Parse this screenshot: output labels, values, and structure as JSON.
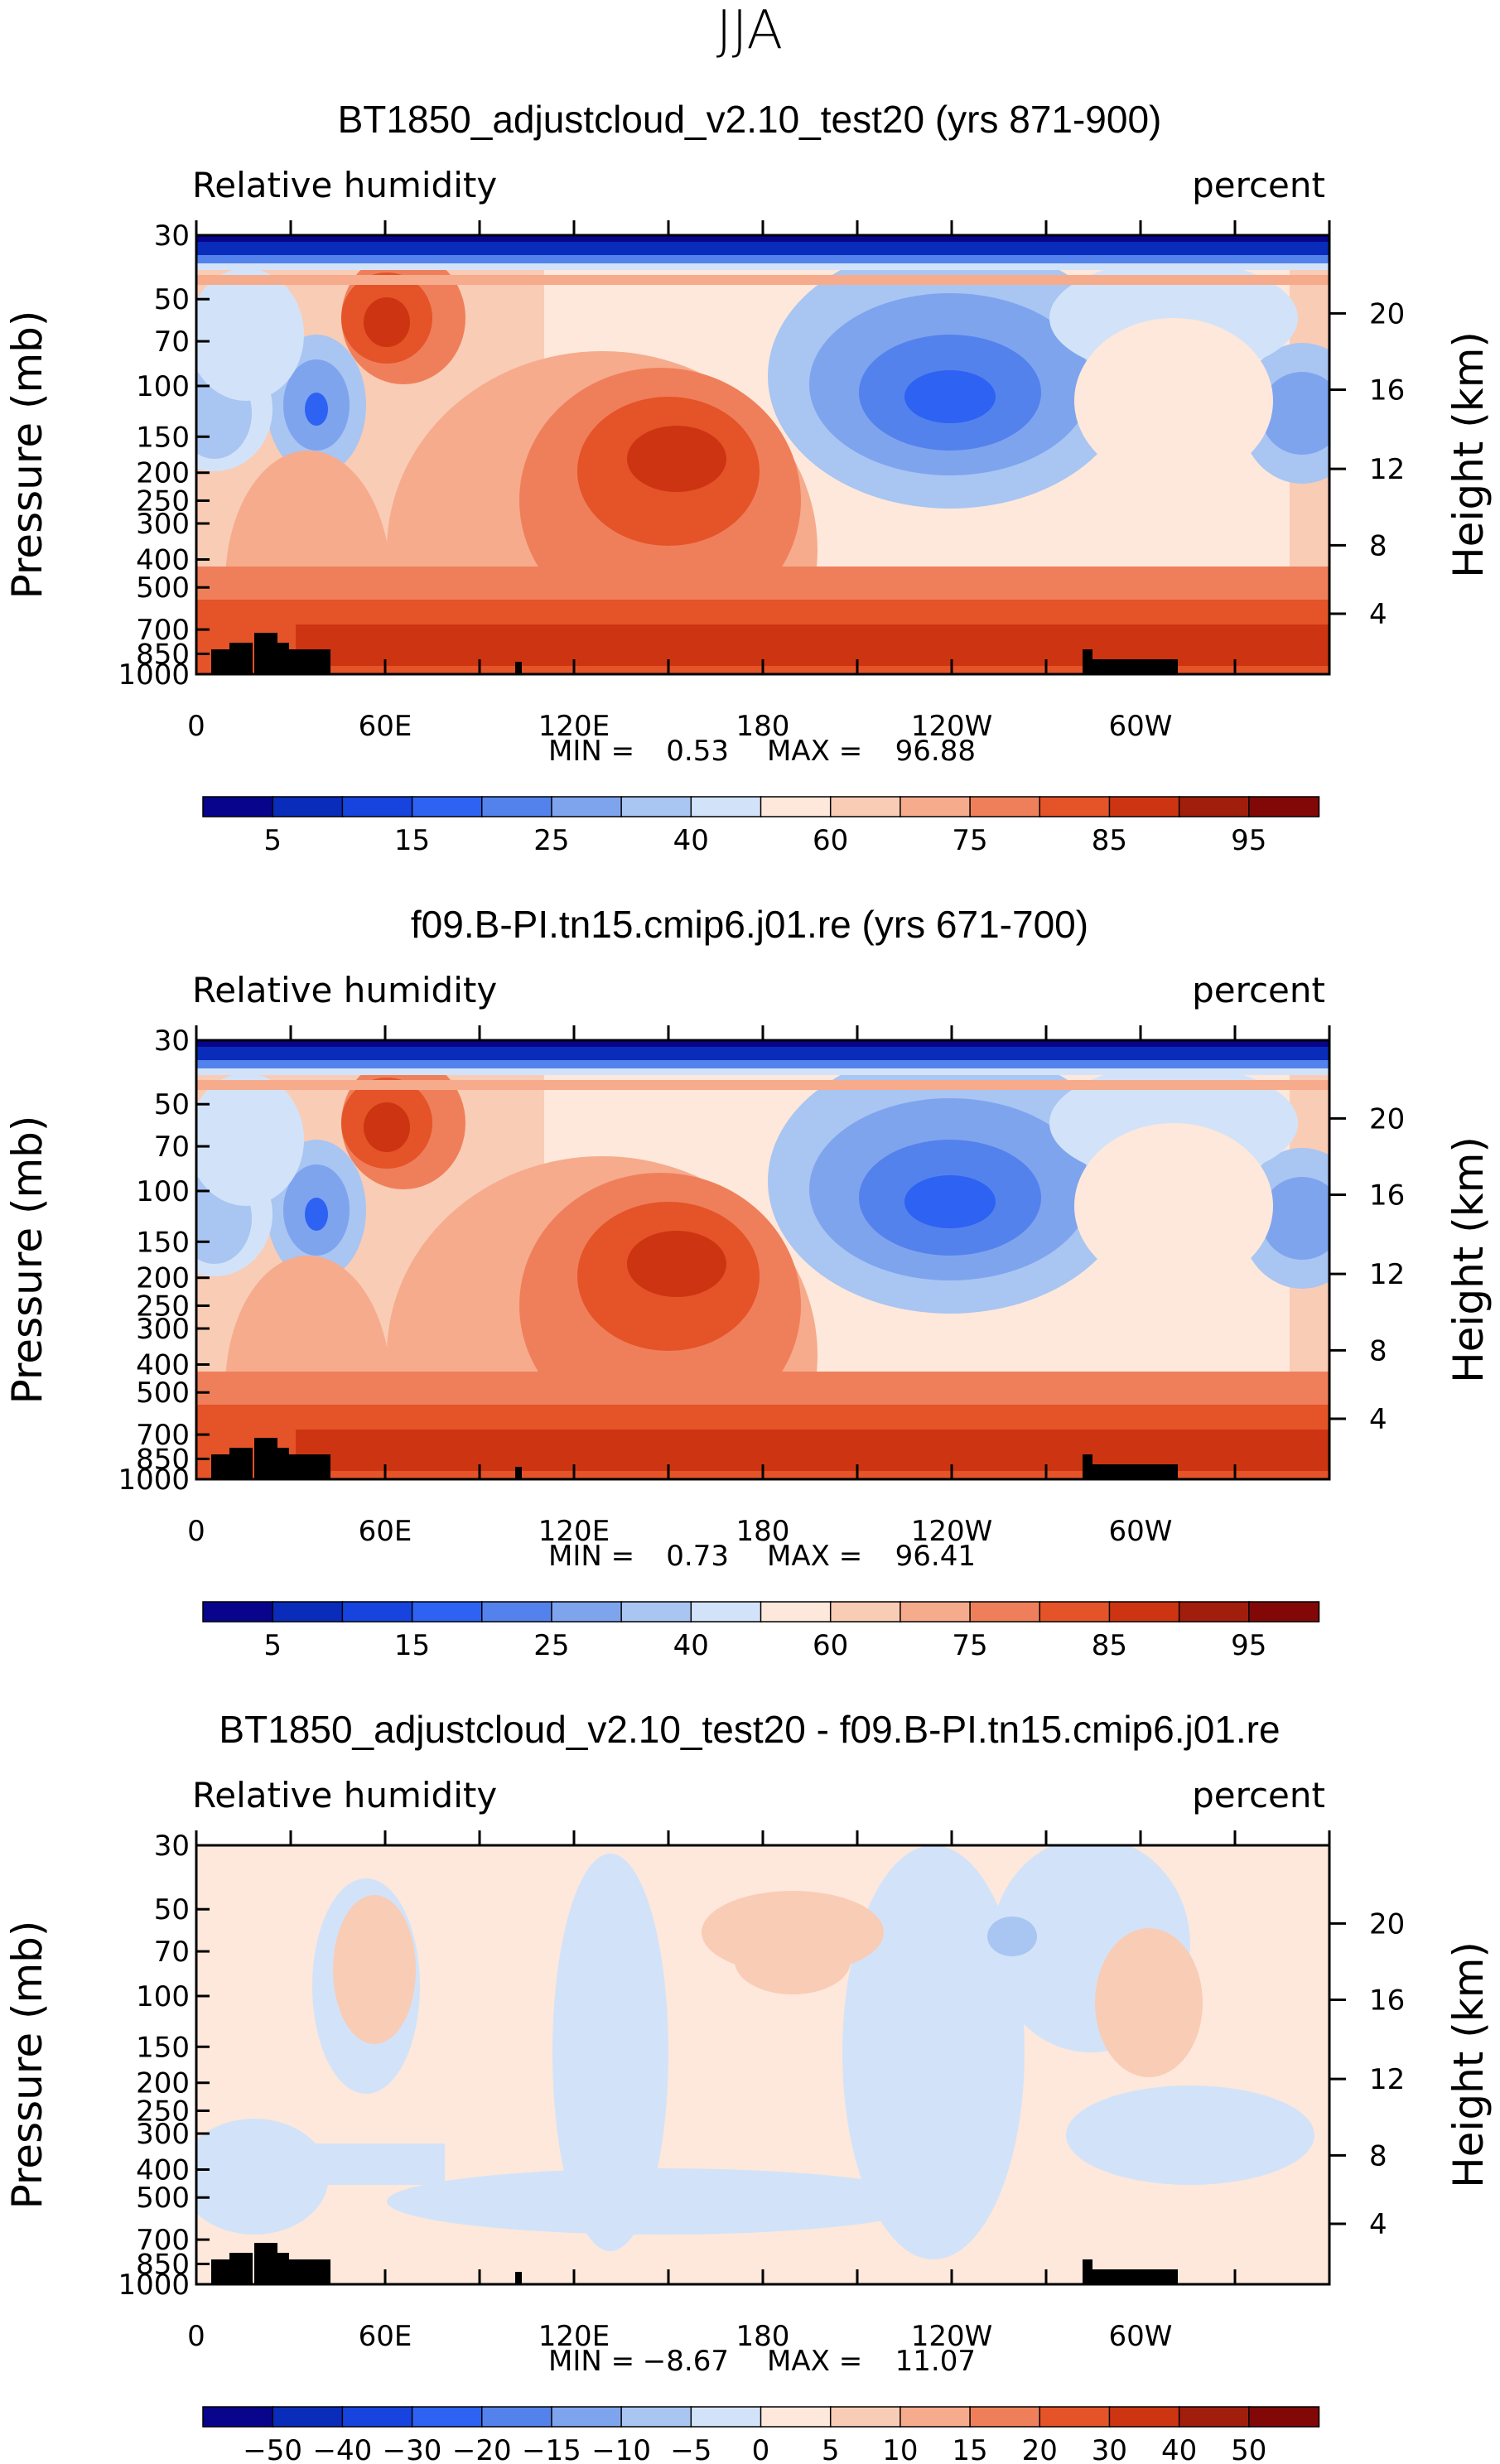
{
  "figure": {
    "season": "JJA"
  },
  "chart_data": [
    {
      "type": "heatmap",
      "title": "BT1850_adjustcloud_v2.10_test20 (yrs 871-900)",
      "variable": "Relative humidity",
      "units": "percent",
      "ylabel": "Pressure (mb)",
      "y2label": "Height (km)",
      "xticks": [
        "0",
        "60E",
        "120E",
        "180",
        "120W",
        "60W"
      ],
      "xlim_deg": [
        0,
        360
      ],
      "yticks": [
        "30",
        "50",
        "70",
        "100",
        "150",
        "200",
        "250",
        "300",
        "400",
        "500",
        "700",
        "850",
        "1000"
      ],
      "ylim_mb": [
        30,
        1000
      ],
      "y2ticks": [
        "20",
        "16",
        "12",
        "8",
        "4"
      ],
      "y2_pressure_mb": [
        56,
        103,
        194,
        357,
        617
      ],
      "min_label": "MIN =",
      "min": "0.53",
      "max_label": "MAX =",
      "max": "96.88",
      "levels": [
        "5",
        "15",
        "25",
        "40",
        "60",
        "75",
        "85",
        "95"
      ],
      "colorbar": [
        "#08058c",
        "#0a2cba",
        "#1744de",
        "#2d62f2",
        "#5482ec",
        "#7fa4ee",
        "#a9c5f2",
        "#d2e3f9",
        "#fde8db",
        "#f9ccb6",
        "#f6ab8c",
        "#ef7f5a",
        "#e55328",
        "#cd3512",
        "#a11d0c",
        "#820808"
      ],
      "mode": "total"
    },
    {
      "type": "heatmap",
      "title": "f09.B-PI.tn15.cmip6.j01.re (yrs 671-700)",
      "variable": "Relative humidity",
      "units": "percent",
      "ylabel": "Pressure (mb)",
      "y2label": "Height (km)",
      "xticks": [
        "0",
        "60E",
        "120E",
        "180",
        "120W",
        "60W"
      ],
      "xlim_deg": [
        0,
        360
      ],
      "yticks": [
        "30",
        "50",
        "70",
        "100",
        "150",
        "200",
        "250",
        "300",
        "400",
        "500",
        "700",
        "850",
        "1000"
      ],
      "ylim_mb": [
        30,
        1000
      ],
      "y2ticks": [
        "20",
        "16",
        "12",
        "8",
        "4"
      ],
      "y2_pressure_mb": [
        56,
        103,
        194,
        357,
        617
      ],
      "min_label": "MIN =",
      "min": "0.73",
      "max_label": "MAX =",
      "max": "96.41",
      "levels": [
        "5",
        "15",
        "25",
        "40",
        "60",
        "75",
        "85",
        "95"
      ],
      "colorbar": [
        "#08058c",
        "#0a2cba",
        "#1744de",
        "#2d62f2",
        "#5482ec",
        "#7fa4ee",
        "#a9c5f2",
        "#d2e3f9",
        "#fde8db",
        "#f9ccb6",
        "#f6ab8c",
        "#ef7f5a",
        "#e55328",
        "#cd3512",
        "#a11d0c",
        "#820808"
      ],
      "mode": "total"
    },
    {
      "type": "heatmap",
      "title": "BT1850_adjustcloud_v2.10_test20 - f09.B-PI.tn15.cmip6.j01.re",
      "variable": "Relative humidity",
      "units": "percent",
      "ylabel": "Pressure (mb)",
      "y2label": "Height (km)",
      "xticks": [
        "0",
        "60E",
        "120E",
        "180",
        "120W",
        "60W"
      ],
      "xlim_deg": [
        0,
        360
      ],
      "yticks": [
        "30",
        "50",
        "70",
        "100",
        "150",
        "200",
        "250",
        "300",
        "400",
        "500",
        "700",
        "850",
        "1000"
      ],
      "ylim_mb": [
        30,
        1000
      ],
      "y2ticks": [
        "20",
        "16",
        "12",
        "8",
        "4"
      ],
      "y2_pressure_mb": [
        56,
        103,
        194,
        357,
        617
      ],
      "min_label": "MIN =",
      "min": "−8.67",
      "max_label": "MAX =",
      "max": "11.07",
      "levels": [
        "−50",
        "−40",
        "−30",
        "−20",
        "−15",
        "−10",
        "−5",
        "0",
        "5",
        "10",
        "15",
        "20",
        "30",
        "40",
        "50"
      ],
      "colorbar": [
        "#08058c",
        "#0a2cba",
        "#1744de",
        "#2d62f2",
        "#5482ec",
        "#7fa4ee",
        "#a9c5f2",
        "#d2e3f9",
        "#fde8db",
        "#f9ccb6",
        "#f6ab8c",
        "#ef7f5a",
        "#e55328",
        "#cd3512",
        "#a11d0c",
        "#820808"
      ],
      "mode": "diff"
    }
  ]
}
